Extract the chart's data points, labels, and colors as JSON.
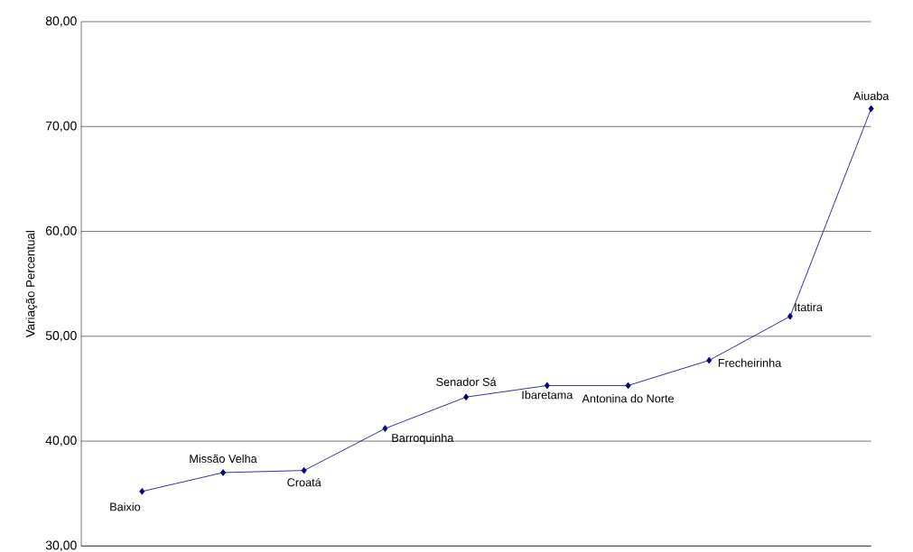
{
  "chart_data": {
    "type": "line",
    "ylabel": "Variação Percentual",
    "categories": [
      null,
      null,
      null,
      null,
      null,
      null,
      null,
      null,
      null,
      null
    ],
    "series": [
      {
        "color": "#000080",
        "values": [
          35.2,
          37.0,
          37.2,
          41.2,
          44.2,
          45.3,
          45.3,
          47.7,
          51.9,
          71.7
        ]
      }
    ],
    "annotations": [
      "Baixio",
      "Missão Velha",
      "Croatá",
      "Barroquinha",
      "Senador Sá",
      "Ibaretama",
      "Antonina do Norte",
      "Frecheirinha",
      "Itatira",
      "Aiuaba"
    ],
    "ylim": [
      30,
      80
    ],
    "yticks": [
      {
        "value": 30,
        "label": "30,00"
      },
      {
        "value": 40,
        "label": "40,00"
      },
      {
        "value": 50,
        "label": "50,00"
      },
      {
        "value": 60,
        "label": "60,00"
      },
      {
        "value": 70,
        "label": "70,00"
      },
      {
        "value": 80,
        "label": "80,00"
      }
    ],
    "grid": "y",
    "marker": "diamond",
    "line_style": "solid",
    "tick_labels": "y"
  }
}
